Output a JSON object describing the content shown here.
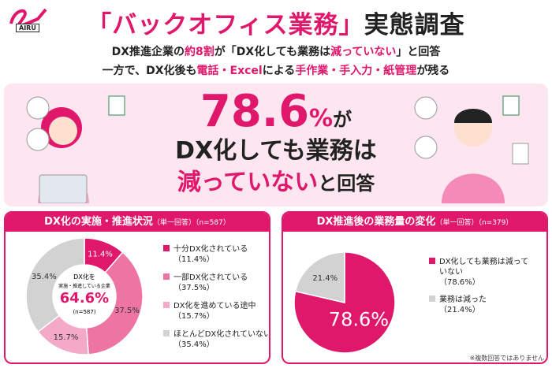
{
  "logo": "AIRU",
  "title": [
    "「バックオフィス業務」",
    "実態調査"
  ],
  "subtitle": [
    [
      "DX推進企業の",
      "約8割",
      "が「DX化しても業務は",
      "減っていない",
      "」と回答"
    ],
    [
      "一方で、DX化後も",
      "電話・Excel",
      "による",
      "手作業・手入力・紙管理",
      "が残る"
    ]
  ],
  "hero": {
    "value": "78.6",
    "unit": "%",
    "particle": "が",
    "line2": "DX化しても業務は",
    "line3": [
      "減っていない",
      "と回答"
    ]
  },
  "chart_data": [
    {
      "type": "donut",
      "title": "DX化の実施・推進状況",
      "subtitle": "（単一回答）（n=587）",
      "categories": [
        "十分DX化されている",
        "一部DX化されている",
        "DX化を進めている途中",
        "ほとんどDX化されていない"
      ],
      "values": [
        11.4,
        37.5,
        15.7,
        35.4
      ],
      "value_labels": [
        "11.4%",
        "37.5%",
        "15.7%",
        "35.4%"
      ],
      "legend_labels": [
        "（11.4%）",
        "（37.5%）",
        "（15.7%）",
        "（35.4%）"
      ],
      "colors": [
        "#e0186c",
        "#ee74a4",
        "#f5a9c8",
        "#d2d2d2"
      ],
      "center_text": [
        "DX化を",
        "実施・推進している企業"
      ],
      "center_value": "64.6%",
      "center_note": "(n=587)"
    },
    {
      "type": "pie",
      "title": "DX推進後の業務量の変化",
      "subtitle": "（単一回答）（n=379）",
      "categories": [
        "DX化しても業務は減っていない",
        "業務は減った"
      ],
      "values": [
        78.6,
        21.4
      ],
      "value_labels": [
        "78.6%",
        "21.4%"
      ],
      "legend_labels": [
        "（78.6%）",
        "（21.4%）"
      ],
      "colors": [
        "#e0186c",
        "#d2d2d2"
      ]
    }
  ],
  "footnote": "※複数回答ではありません"
}
